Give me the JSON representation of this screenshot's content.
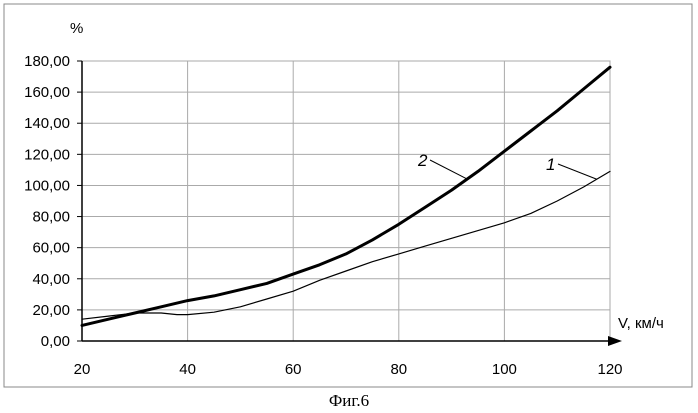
{
  "chart_data": {
    "type": "line",
    "ylabel": "%",
    "xlabel": "V, км/ч",
    "xlim": [
      20,
      120
    ],
    "ylim": [
      0,
      180
    ],
    "x_ticks": [
      20,
      40,
      60,
      80,
      100,
      120
    ],
    "x_tick_labels": [
      "20",
      "40",
      "60",
      "80",
      "100",
      "120"
    ],
    "y_ticks": [
      0,
      20,
      40,
      60,
      80,
      100,
      120,
      140,
      160,
      180
    ],
    "y_tick_labels": [
      "0,00",
      "20,00",
      "40,00",
      "60,00",
      "80,00",
      "100,00",
      "120,00",
      "140,00",
      "160,00",
      "180,00"
    ],
    "grid": true,
    "series": [
      {
        "name": "1",
        "x": [
          20,
          25,
          30,
          35,
          38,
          40,
          45,
          50,
          55,
          60,
          65,
          70,
          75,
          80,
          85,
          90,
          95,
          100,
          105,
          110,
          115,
          120
        ],
        "values": [
          14,
          16,
          18,
          18,
          17,
          17,
          18.5,
          22,
          27,
          32,
          39,
          45,
          51,
          56,
          61,
          66,
          71,
          76,
          82,
          90,
          99,
          109
        ],
        "color": "#000000",
        "weight": "thin"
      },
      {
        "name": "2",
        "x": [
          20,
          25,
          30,
          35,
          40,
          45,
          50,
          55,
          60,
          65,
          70,
          75,
          80,
          85,
          90,
          95,
          100,
          105,
          110,
          115,
          120
        ],
        "values": [
          10,
          14,
          18,
          22,
          26,
          29,
          33,
          37,
          43,
          49,
          56,
          65,
          75,
          86,
          97,
          109,
          122,
          135,
          148,
          162,
          176
        ],
        "color": "#000000",
        "weight": "bold"
      }
    ]
  },
  "caption": "Фиг.6"
}
